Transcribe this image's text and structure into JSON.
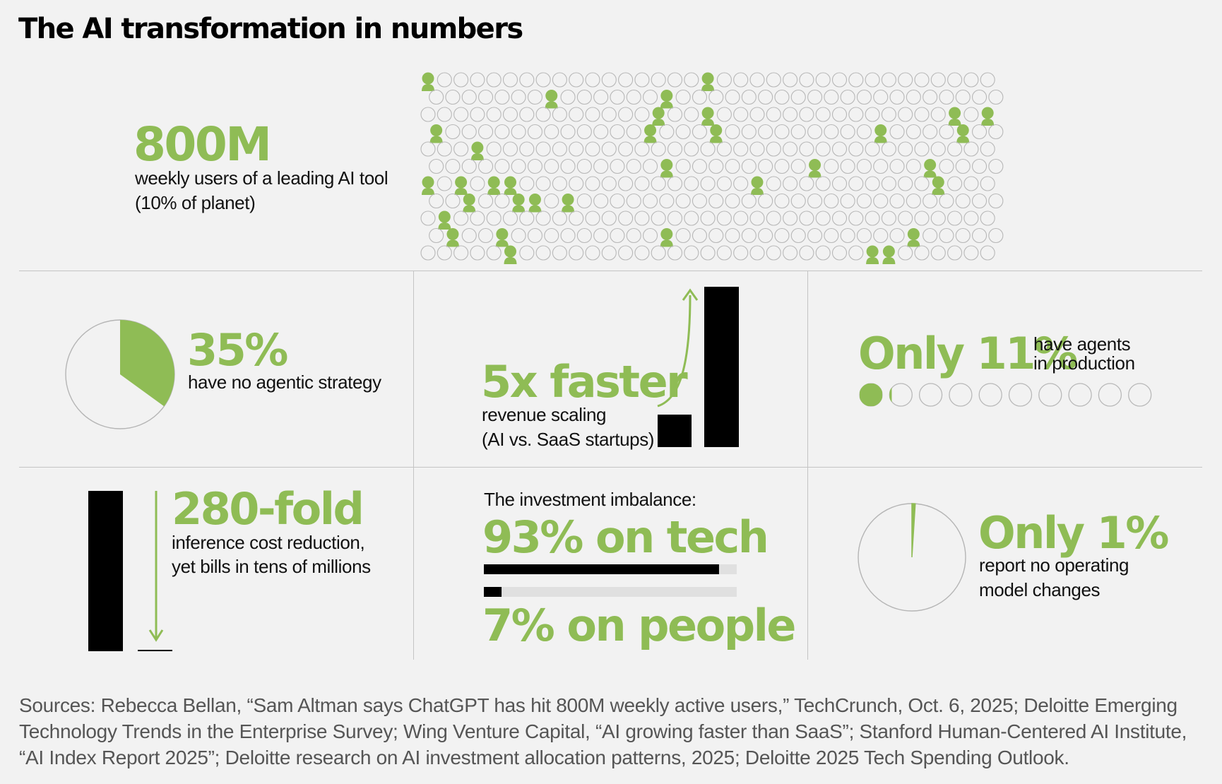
{
  "title": "The AI transformation in numbers",
  "colors": {
    "accent": "#8fbc55",
    "dark": "#000000",
    "background": "#f2f2f2",
    "divider": "#c4c4c4"
  },
  "users": {
    "value": "800M",
    "caption_line1": "weekly users of a leading AI tool",
    "caption_line2": "(10% of planet)",
    "icon": "person-icon",
    "highlight_fraction": 0.1
  },
  "strategy": {
    "value": "35%",
    "caption": "have no agentic strategy",
    "pie_fraction": 0.35,
    "icon": "pie-chart-icon"
  },
  "revenue": {
    "value": "5x faster",
    "caption_line1": "revenue scaling",
    "caption_line2": "(AI vs. SaaS startups)",
    "bar_ratio": 5,
    "icon": "growth-arrow-icon"
  },
  "agents": {
    "value": "Only 11%",
    "caption_line1": "have agents",
    "caption_line2": "in production",
    "fraction": 0.11,
    "dot_count": 10
  },
  "inference": {
    "value": "280-fold",
    "caption_line1": "inference cost reduction,",
    "caption_line2": "yet bills in tens of millions",
    "icon": "down-arrow-icon"
  },
  "investment": {
    "heading": "The investment imbalance:",
    "tech_value": "93% on tech",
    "people_value": "7% on people",
    "tech_fraction": 0.93,
    "people_fraction": 0.07
  },
  "operating": {
    "value": "Only 1%",
    "caption_line1": "report no operating",
    "caption_line2": "model changes",
    "pie_fraction": 0.01
  },
  "sources": {
    "line1": "Sources: Rebecca Bellan, “Sam Altman says ChatGPT has hit 800M weekly active users,” TechCrunch, Oct. 6, 2025; Deloitte Emerging",
    "line2": "Technology Trends in the Enterprise Survey; Wing Venture Capital, “AI growing faster than SaaS”; Stanford Human-Centered AI Institute,",
    "line3": "“AI Index Report 2025”; Deloitte research on AI investment allocation patterns, 2025; Deloitte 2025 Tech Spending Outlook."
  }
}
